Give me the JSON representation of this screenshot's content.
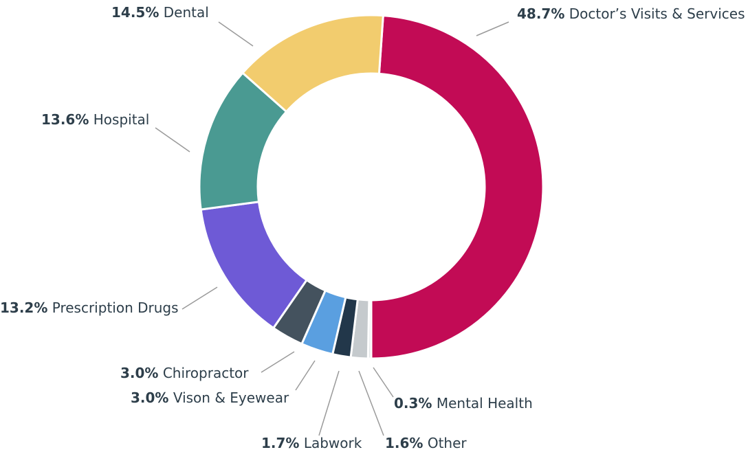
{
  "chart_data": {
    "type": "donut",
    "categories": [
      "Doctor’s Visits & Services",
      "Mental Health",
      "Other",
      "Labwork",
      "Vison & Eyewear",
      "Chiropractor",
      "Prescription Drugs",
      "Hospital",
      "Dental"
    ],
    "values": [
      48.7,
      0.3,
      1.6,
      1.7,
      3.0,
      3.0,
      13.2,
      13.6,
      14.5
    ],
    "value_labels": [
      "48.7%",
      "0.3%",
      "1.6%",
      "1.7%",
      "3.0%",
      "3.0%",
      "13.2%",
      "13.6%",
      "14.5%"
    ],
    "colors": [
      "#c20b55",
      "#e3e6e8",
      "#c5cacd",
      "#22374a",
      "#5a9fe0",
      "#44525e",
      "#6e5ad6",
      "#4a9a92",
      "#f2cc6e"
    ]
  }
}
